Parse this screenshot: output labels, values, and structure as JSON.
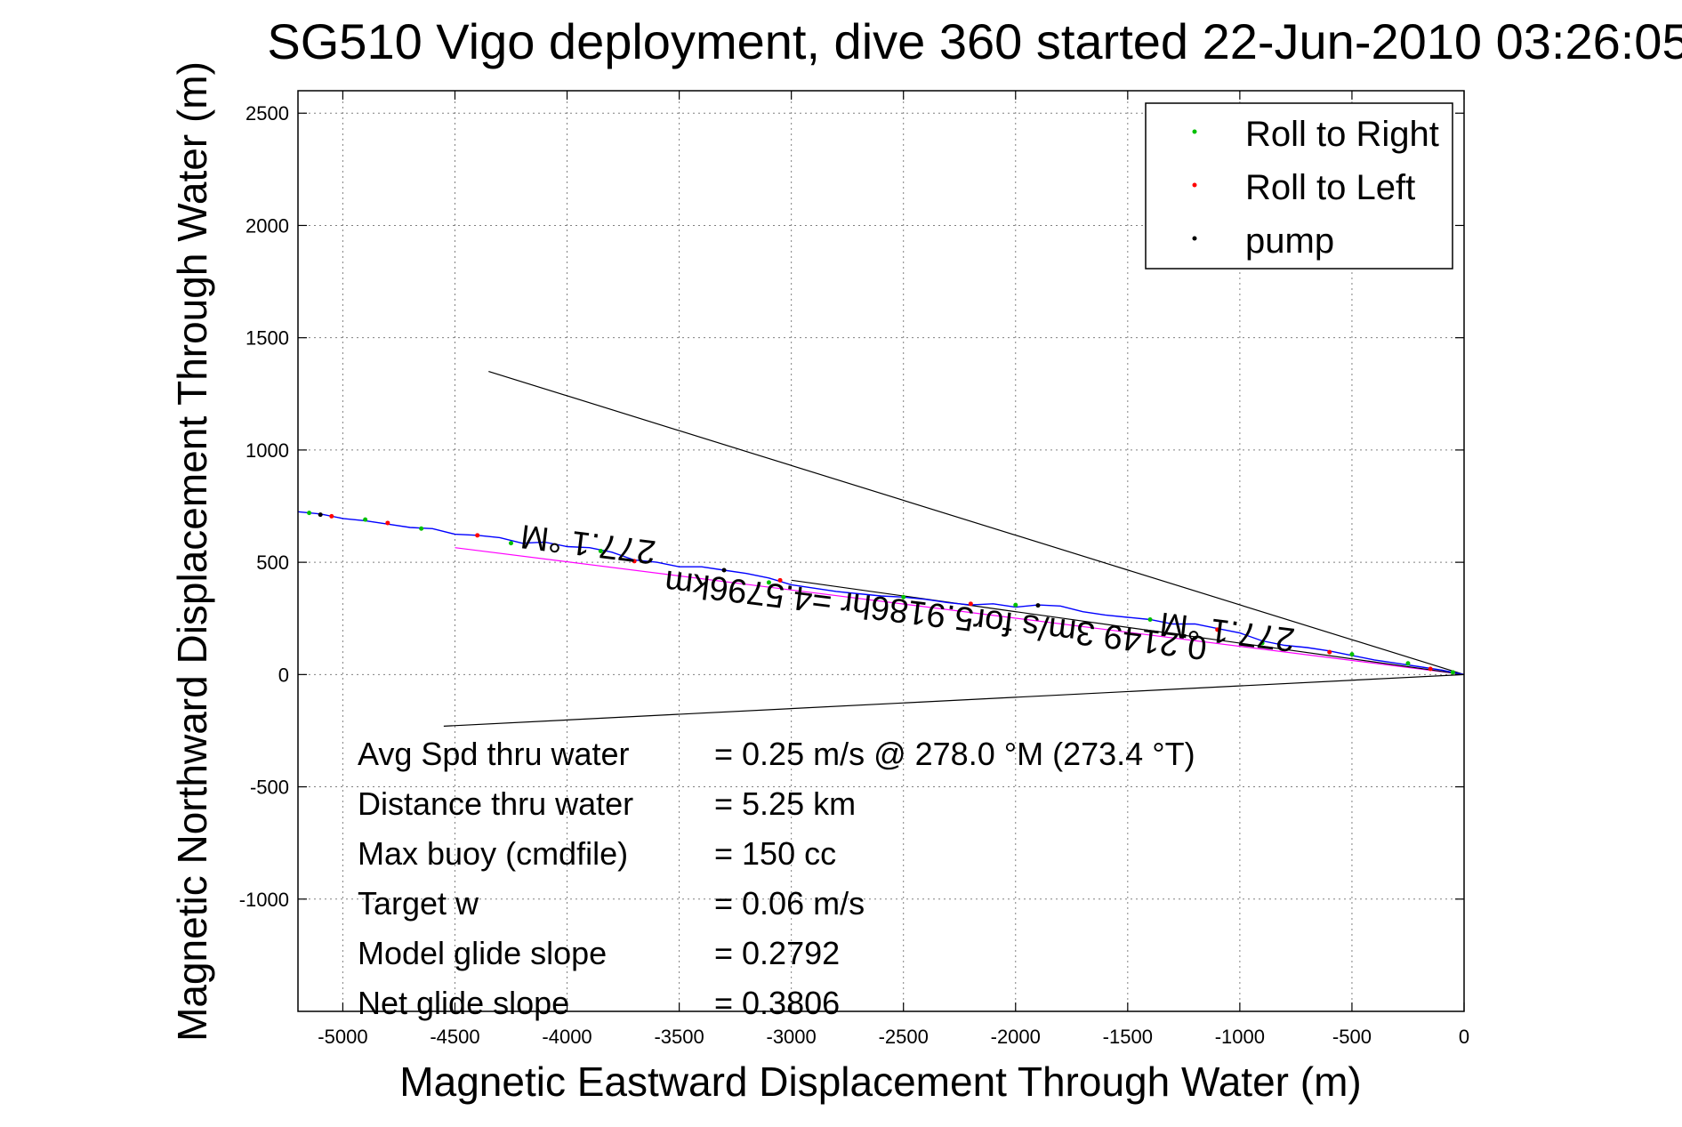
{
  "chart_data": {
    "type": "line",
    "title": "SG510 Vigo deployment, dive 360 started 22-Jun-2010 03:26:05",
    "xlabel": "Magnetic Eastward Displacement Through Water (m)",
    "ylabel": "Magnetic Northward Displacement Through Water (m)",
    "xlim": [
      -5200,
      0
    ],
    "ylim": [
      -1500,
      2600
    ],
    "xticks": [
      -5000,
      -4500,
      -4000,
      -3500,
      -3000,
      -2500,
      -2000,
      -1500,
      -1000,
      -500,
      0
    ],
    "yticks": [
      -1000,
      -500,
      0,
      500,
      1000,
      1500,
      2000,
      2500
    ],
    "grid": true,
    "legend_position": "top-right",
    "legend": [
      {
        "label": "Roll to Right",
        "color": "#00c000"
      },
      {
        "label": "Roll to Left",
        "color": "#ff0000"
      },
      {
        "label": "pump",
        "color": "#000000"
      }
    ],
    "track": {
      "color": "#0000ff",
      "x": [
        -5200,
        -5100,
        -5000,
        -4900,
        -4800,
        -4700,
        -4600,
        -4500,
        -4400,
        -4300,
        -4200,
        -4100,
        -4000,
        -3900,
        -3800,
        -3700,
        -3600,
        -3500,
        -3400,
        -3300,
        -3200,
        -3100,
        -3000,
        -2900,
        -2800,
        -2700,
        -2600,
        -2500,
        -2400,
        -2300,
        -2200,
        -2100,
        -2000,
        -1900,
        -1800,
        -1700,
        -1600,
        -1500,
        -1400,
        -1300,
        -1200,
        -1100,
        -1000,
        -900,
        -800,
        -700,
        -600,
        -500,
        -400,
        -300,
        -200,
        -100,
        0
      ],
      "y": [
        725,
        715,
        695,
        685,
        670,
        655,
        650,
        625,
        620,
        610,
        585,
        590,
        570,
        565,
        545,
        510,
        500,
        480,
        480,
        465,
        450,
        430,
        400,
        385,
        370,
        360,
        350,
        345,
        335,
        320,
        310,
        315,
        300,
        310,
        305,
        280,
        265,
        255,
        245,
        225,
        225,
        205,
        185,
        150,
        130,
        120,
        105,
        85,
        65,
        50,
        35,
        20,
        0
      ]
    },
    "roll_right_points": {
      "x": [
        -5150,
        -4900,
        -4650,
        -4250,
        -3850,
        -3100,
        -2500,
        -2000,
        -1400,
        -900,
        -500,
        -250,
        -50
      ],
      "y": [
        720,
        690,
        650,
        585,
        550,
        410,
        345,
        310,
        245,
        140,
        90,
        50,
        10
      ]
    },
    "roll_left_points": {
      "x": [
        -5050,
        -4800,
        -4400,
        -3700,
        -3050,
        -2200,
        -1100,
        -600,
        -150
      ],
      "y": [
        705,
        675,
        620,
        505,
        420,
        315,
        200,
        100,
        25
      ]
    },
    "pump_points": {
      "x": [
        -5100,
        -3300,
        -1900
      ],
      "y": [
        712,
        465,
        308
      ]
    },
    "reference_lines": [
      {
        "name": "upper-bound-line",
        "color": "#000000",
        "x": [
          -4350,
          0
        ],
        "y": [
          1350,
          0
        ]
      },
      {
        "name": "lower-bound-line",
        "color": "#000000",
        "x": [
          -4550,
          0
        ],
        "y": [
          -230,
          0
        ]
      },
      {
        "name": "fit-line",
        "color": "#ff00ff",
        "x": [
          -4500,
          0
        ],
        "y": [
          565,
          0
        ]
      },
      {
        "name": "black-dir-line",
        "color": "#000000",
        "x": [
          -3000,
          0
        ],
        "y": [
          420,
          0
        ]
      }
    ],
    "rotated_labels": [
      {
        "text": "277.1 °M",
        "x": -3900,
        "y": 630,
        "angle": 187
      },
      {
        "text": "277.1 °M",
        "x": -1050,
        "y": 240,
        "angle": 187
      },
      {
        "text": "0.2149 3m/s for5.9186hr =4.5796km",
        "x": -2350,
        "y": 315,
        "angle": 187
      }
    ],
    "annotations": [
      {
        "label": "Avg Spd thru water",
        "value": "=  0.25 m/s @ 278.0 °M (273.4 °T)"
      },
      {
        "label": "Distance thru water",
        "value": "=  5.25 km"
      },
      {
        "label": "Max buoy (cmdfile)",
        "value": "= 150 cc"
      },
      {
        "label": "Target w",
        "value": "= 0.06 m/s"
      },
      {
        "label": "Model glide slope",
        "value": "= 0.2792"
      },
      {
        "label": "Net glide slope",
        "value": "= 0.3806"
      }
    ]
  }
}
